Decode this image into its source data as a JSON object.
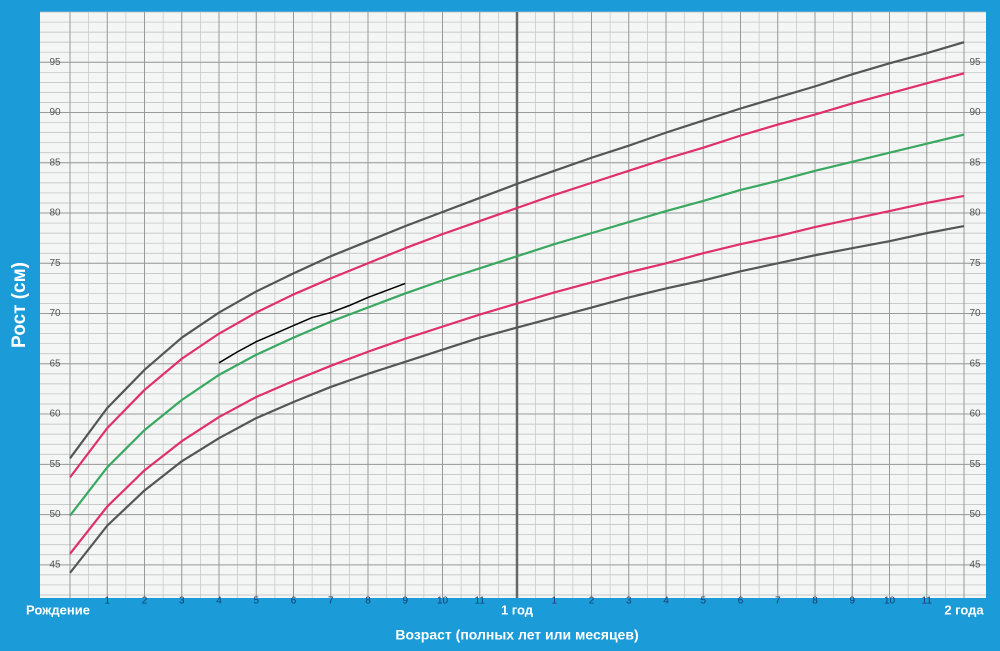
{
  "chart_data": {
    "type": "line",
    "y_label": "Рост (см)",
    "x_label": "Возраст (полных лет или месяцев)",
    "x": [
      0,
      1,
      2,
      3,
      4,
      5,
      6,
      7,
      8,
      9,
      10,
      11,
      12,
      13,
      14,
      15,
      16,
      17,
      18,
      19,
      20,
      21,
      22,
      23,
      24
    ],
    "xlim": [
      0,
      24
    ],
    "xticks": [
      {
        "value": 0,
        "label": "Рождение"
      },
      1,
      2,
      3,
      4,
      5,
      6,
      7,
      8,
      9,
      10,
      11,
      {
        "value": 12,
        "label": "1 год"
      },
      {
        "value": 13,
        "label": "1"
      },
      {
        "value": 14,
        "label": "2"
      },
      {
        "value": 15,
        "label": "3"
      },
      {
        "value": 16,
        "label": "4"
      },
      {
        "value": 17,
        "label": "5"
      },
      {
        "value": 18,
        "label": "6"
      },
      {
        "value": 19,
        "label": "7"
      },
      {
        "value": 20,
        "label": "8"
      },
      {
        "value": 21,
        "label": "9"
      },
      {
        "value": 22,
        "label": "10"
      },
      {
        "value": 23,
        "label": "11"
      },
      {
        "value": 24,
        "label": "2 года"
      }
    ],
    "ylim": [
      41.7,
      100
    ],
    "yticks": [
      45,
      50,
      55,
      60,
      65,
      70,
      75,
      80,
      85,
      90,
      95
    ],
    "grid": true,
    "xminor_step": 0.5,
    "yminor_step": 1,
    "emphasis_x": 12,
    "series": [
      {
        "color": "#555555",
        "values": [
          55.6,
          60.6,
          64.4,
          67.6,
          70.1,
          72.2,
          74.0,
          75.7,
          77.2,
          78.7,
          80.1,
          81.5,
          82.9,
          84.2,
          85.5,
          86.7,
          88.0,
          89.2,
          90.4,
          91.5,
          92.6,
          93.8,
          94.9,
          95.9,
          97.0
        ]
      },
      {
        "color": "#e0306a",
        "values": [
          53.7,
          58.6,
          62.4,
          65.5,
          68.0,
          70.1,
          71.9,
          73.5,
          75.0,
          76.5,
          77.9,
          79.2,
          80.5,
          81.8,
          83.0,
          84.2,
          85.4,
          86.5,
          87.7,
          88.8,
          89.8,
          90.9,
          91.9,
          92.9,
          93.9
        ]
      },
      {
        "color": "#3aa860",
        "values": [
          49.9,
          54.7,
          58.4,
          61.4,
          63.9,
          65.9,
          67.6,
          69.2,
          70.6,
          72.0,
          73.3,
          74.5,
          75.7,
          76.9,
          78.0,
          79.1,
          80.2,
          81.2,
          82.3,
          83.2,
          84.2,
          85.1,
          86.0,
          86.9,
          87.8
        ]
      },
      {
        "color": "#e0306a",
        "values": [
          46.1,
          50.8,
          54.4,
          57.3,
          59.7,
          61.7,
          63.3,
          64.8,
          66.2,
          67.5,
          68.7,
          69.9,
          71.0,
          72.1,
          73.1,
          74.1,
          75.0,
          76.0,
          76.9,
          77.7,
          78.6,
          79.4,
          80.2,
          81.0,
          81.7
        ]
      },
      {
        "color": "#555555",
        "values": [
          44.2,
          48.9,
          52.4,
          55.3,
          57.6,
          59.6,
          61.2,
          62.7,
          64.0,
          65.2,
          66.4,
          67.6,
          68.6,
          69.6,
          70.6,
          71.6,
          72.5,
          73.3,
          74.2,
          75.0,
          75.8,
          76.5,
          77.2,
          78.0,
          78.7
        ]
      },
      {
        "color": "#000000",
        "x": [
          4,
          4.5,
          5,
          5.5,
          6,
          6.5,
          7,
          7.5,
          8,
          8.5,
          9
        ],
        "values": [
          65.1,
          66.2,
          67.2,
          68.0,
          68.8,
          69.6,
          70.1,
          70.8,
          71.6,
          72.3,
          73.0
        ]
      }
    ]
  }
}
